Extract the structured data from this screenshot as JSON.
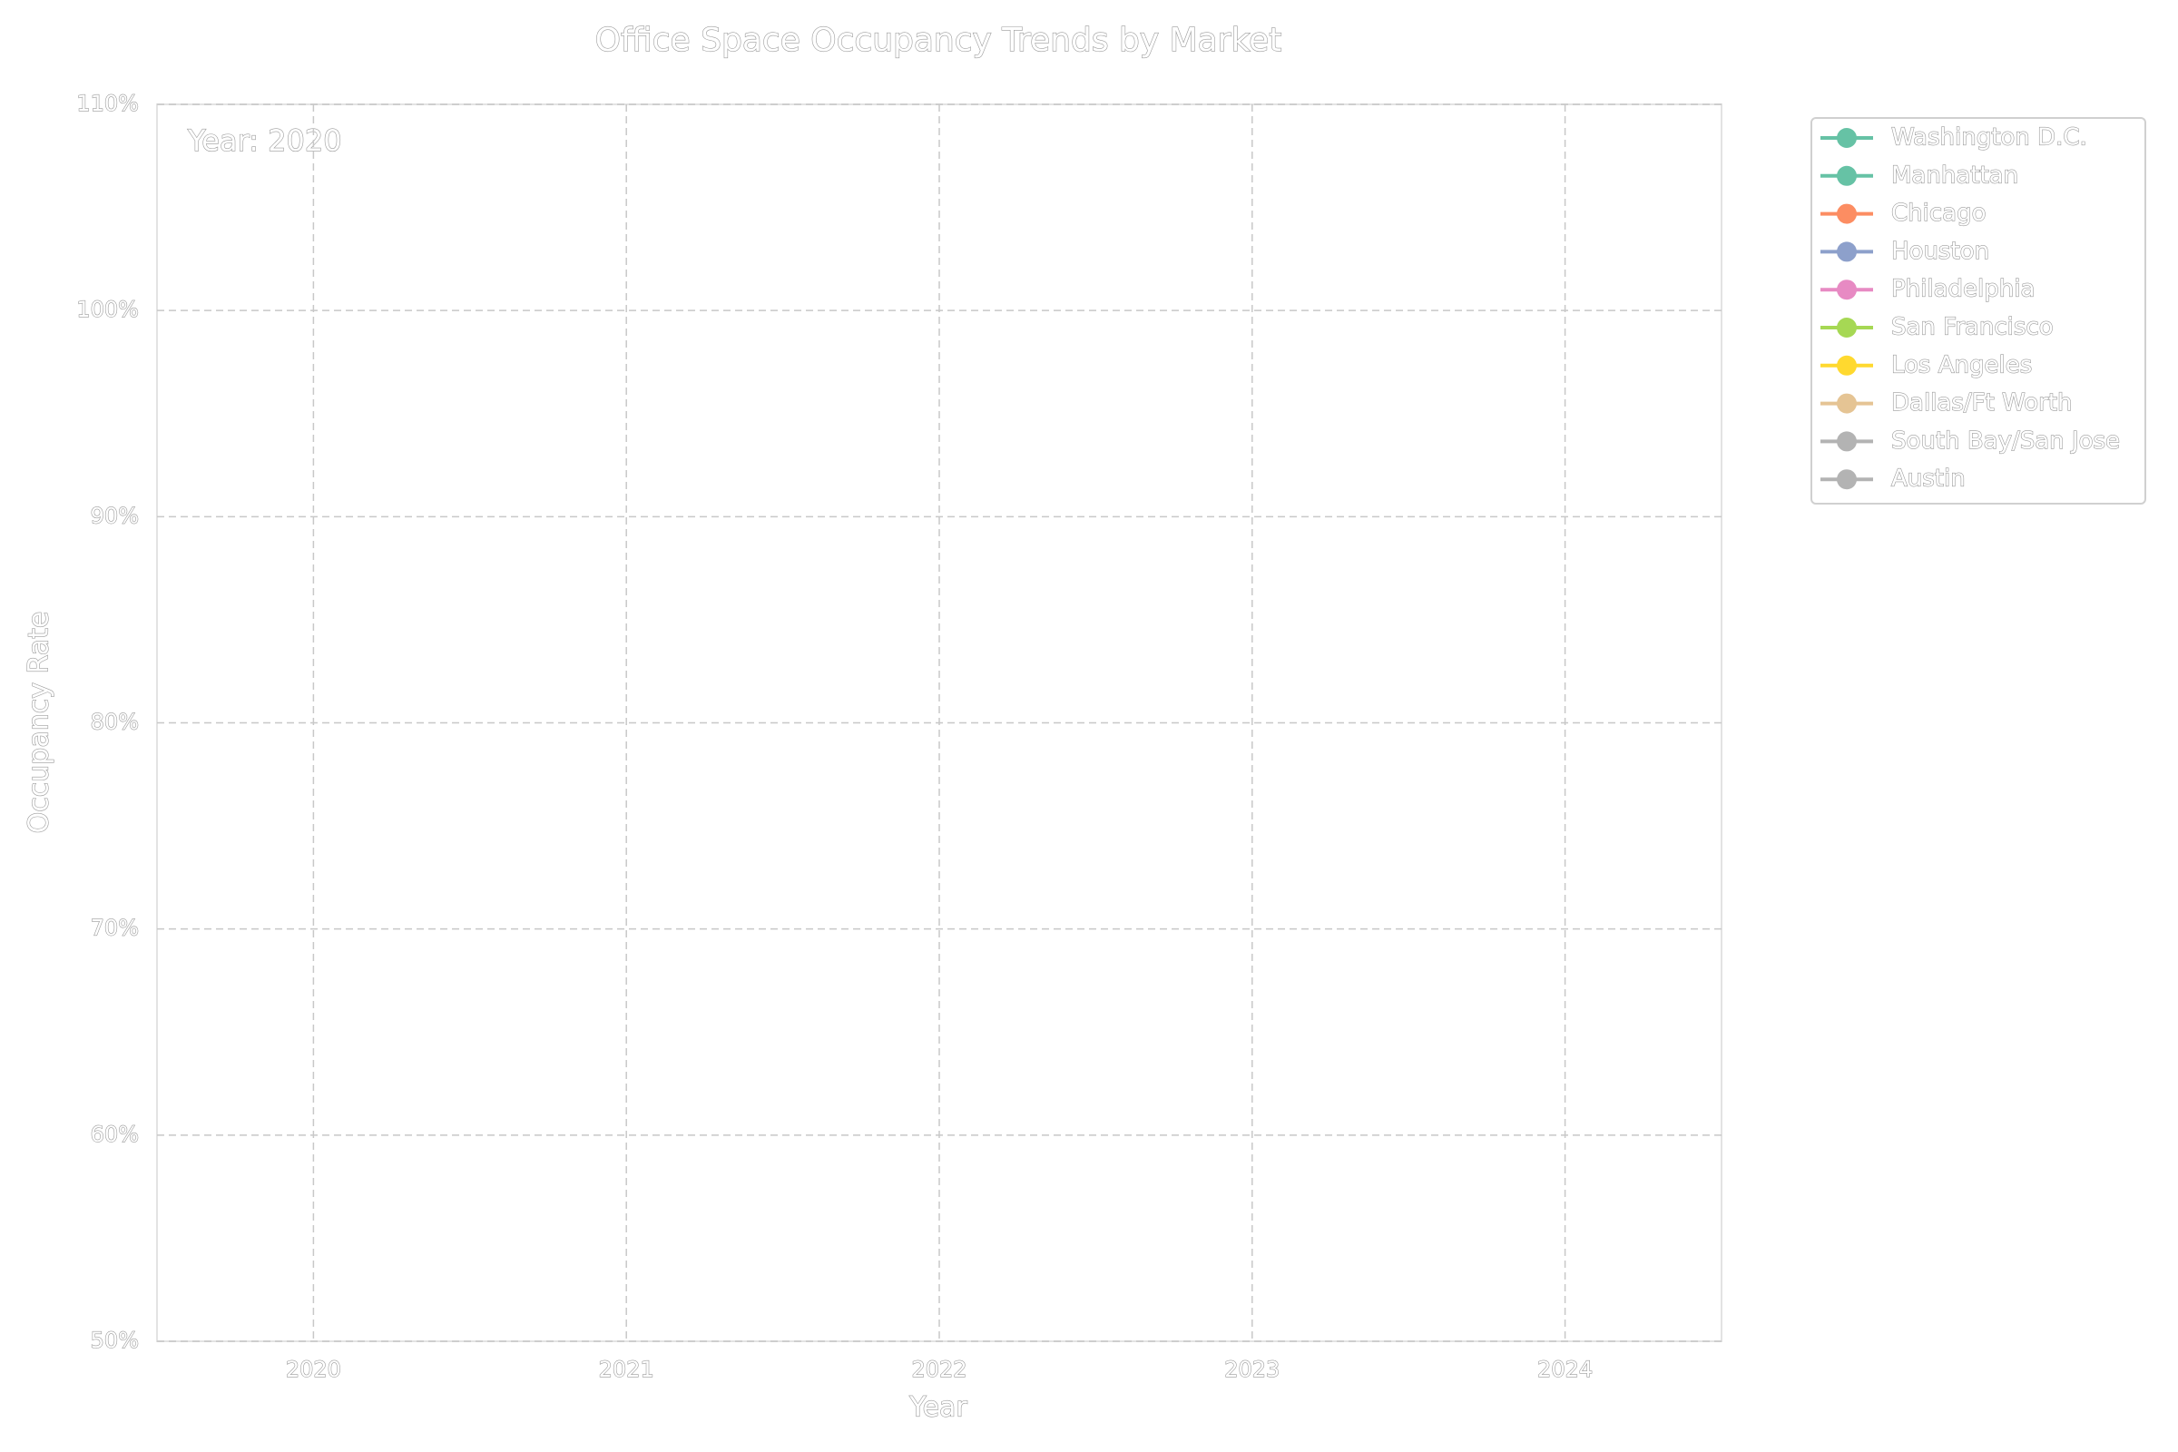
{
  "chart_data": {
    "type": "line",
    "title": "Office Space Occupancy Trends by Market",
    "xlabel": "Year",
    "ylabel": "Occupancy Rate",
    "annotation": "Year: 2020",
    "x": [
      2020,
      2021,
      2022,
      2023,
      2024
    ],
    "series": [
      {
        "name": "Washington D.C.",
        "color": "#66c2a5",
        "values": [
          null,
          null,
          null,
          null,
          null
        ]
      },
      {
        "name": "Manhattan",
        "color": "#66c2a5",
        "values": [
          null,
          null,
          null,
          null,
          null
        ]
      },
      {
        "name": "Chicago",
        "color": "#fc8d62",
        "values": [
          null,
          null,
          null,
          null,
          null
        ]
      },
      {
        "name": "Houston",
        "color": "#8da0cb",
        "values": [
          null,
          null,
          null,
          null,
          null
        ]
      },
      {
        "name": "Philadelphia",
        "color": "#e78ac3",
        "values": [
          null,
          null,
          null,
          null,
          null
        ]
      },
      {
        "name": "San Francisco",
        "color": "#a6d854",
        "values": [
          null,
          null,
          null,
          null,
          null
        ]
      },
      {
        "name": "Los Angeles",
        "color": "#ffd92f",
        "values": [
          null,
          null,
          null,
          null,
          null
        ]
      },
      {
        "name": "Dallas/Ft Worth",
        "color": "#e5c494",
        "values": [
          null,
          null,
          null,
          null,
          null
        ]
      },
      {
        "name": "South Bay/San Jose",
        "color": "#b3b3b3",
        "values": [
          null,
          null,
          null,
          null,
          null
        ]
      },
      {
        "name": "Austin",
        "color": "#b3b3b3",
        "values": [
          null,
          null,
          null,
          null,
          null
        ]
      }
    ],
    "xlim": [
      2019.5,
      2024.5
    ],
    "xticks": [
      2020,
      2021,
      2022,
      2023,
      2024
    ],
    "ylim": [
      50,
      110
    ],
    "yticks": [
      {
        "value": 50,
        "label": "50%"
      },
      {
        "value": 60,
        "label": "60%"
      },
      {
        "value": 70,
        "label": "70%"
      },
      {
        "value": 80,
        "label": "80%"
      },
      {
        "value": 90,
        "label": "90%"
      },
      {
        "value": 100,
        "label": "100%"
      },
      {
        "value": 110,
        "label": "110%"
      }
    ],
    "grid": true,
    "legend": "outside upper right"
  }
}
